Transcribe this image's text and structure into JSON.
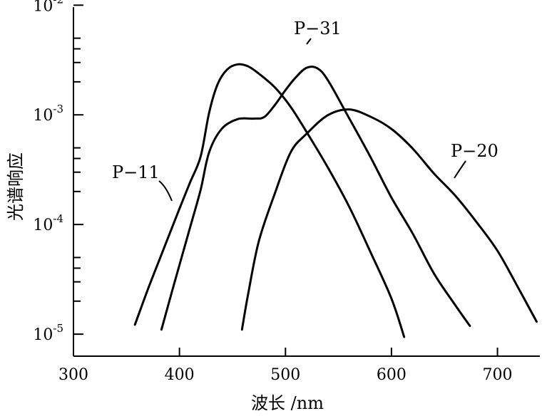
{
  "chart_data": {
    "type": "line",
    "xlabel": "波长 /nm",
    "ylabel": "光谱响应",
    "xlim": [
      300,
      740
    ],
    "ylim": [
      6.3e-06,
      0.0096
    ],
    "yscale": "log",
    "x_ticks": [
      {
        "value": 300,
        "label": "300"
      },
      {
        "value": 400,
        "label": "400"
      },
      {
        "value": 500,
        "label": "500"
      },
      {
        "value": 600,
        "label": "600"
      },
      {
        "value": 700,
        "label": "700"
      }
    ],
    "y_major_ticks": [
      {
        "value": 0.01,
        "base": "10",
        "exp": "-2"
      },
      {
        "value": 0.001,
        "base": "10",
        "exp": "-3"
      },
      {
        "value": 0.0001,
        "base": "10",
        "exp": "-4"
      },
      {
        "value": 1e-05,
        "base": "10",
        "exp": "-5"
      }
    ],
    "y_minor_ticks": [
      0.002,
      0.003,
      0.004,
      0.005,
      0.0002,
      0.0003,
      0.0004,
      0.0005,
      2e-05,
      3e-05,
      4e-05,
      5e-05
    ],
    "grid": false,
    "series": [
      {
        "name": "P-11",
        "x": [
          358,
          370,
          385,
          400,
          410,
          420,
          428,
          436,
          445,
          455,
          465,
          475,
          490,
          505,
          520,
          540,
          560,
          580,
          600,
          612
        ],
        "y": [
          1.22e-05,
          2.53e-05,
          5.95e-05,
          0.000139,
          0.000242,
          0.000418,
          0.00105,
          0.0019,
          0.00259,
          0.00289,
          0.00276,
          0.00237,
          0.00178,
          0.00118,
          0.000696,
          0.000331,
          0.000146,
          5.66e-05,
          2.11e-05,
          9.42e-06
        ]
      },
      {
        "name": "P-31",
        "x": [
          383,
          395,
          410,
          420,
          428,
          440,
          455,
          470,
          480,
          490,
          500,
          510,
          520,
          530,
          540,
          560,
          580,
          600,
          620,
          640,
          660,
          674
        ],
        "y": [
          1.1e-05,
          2.88e-05,
          9.38e-05,
          0.000208,
          0.000457,
          0.000747,
          0.000914,
          0.000924,
          0.000955,
          0.00123,
          0.00168,
          0.00221,
          0.00269,
          0.00266,
          0.00207,
          0.000934,
          0.000416,
          0.000176,
          8.29e-05,
          3.58e-05,
          1.85e-05,
          1.19e-05
        ]
      },
      {
        "name": "P-20",
        "x": [
          459,
          465,
          475,
          490,
          505,
          520,
          540,
          560,
          580,
          600,
          620,
          640,
          660,
          680,
          700,
          720,
          737
        ],
        "y": [
          1.1e-05,
          2.39e-05,
          7.11e-05,
          0.000192,
          0.000457,
          0.000673,
          0.000993,
          0.00112,
          0.000964,
          0.000744,
          0.000493,
          0.000292,
          0.000184,
          0.000106,
          5.76e-05,
          2.6e-05,
          1.3e-05
        ]
      }
    ],
    "labels": [
      {
        "text": "P−11"
      },
      {
        "text": "P−31"
      },
      {
        "text": "P−20"
      }
    ]
  }
}
